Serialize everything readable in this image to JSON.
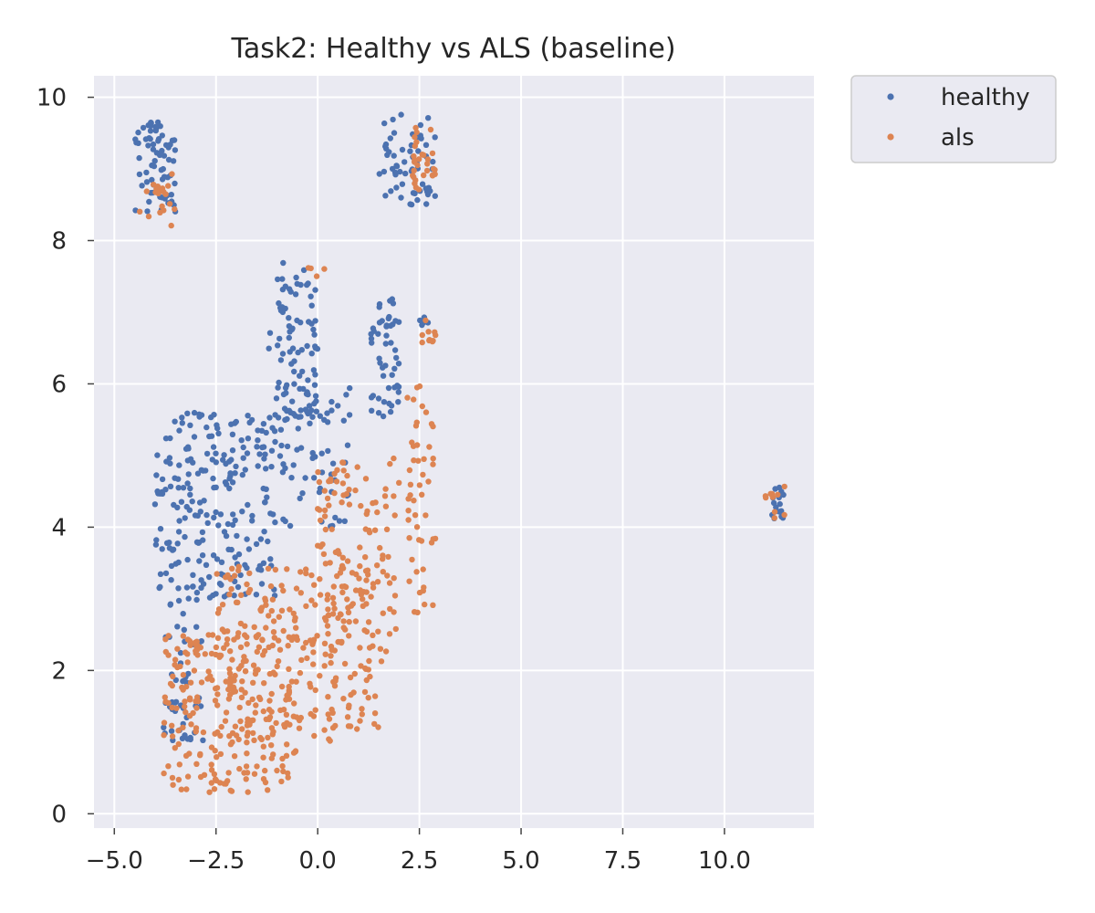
{
  "chart_data": {
    "type": "scatter",
    "title": "Task2: Healthy vs ALS (baseline)",
    "xlabel": "",
    "ylabel": "",
    "xlim": [
      -5.5,
      12.2
    ],
    "ylim": [
      -0.2,
      10.3
    ],
    "x_ticks": [
      -5.0,
      -2.5,
      0.0,
      2.5,
      5.0,
      7.5,
      10.0
    ],
    "x_tick_labels": [
      "−5.0",
      "−2.5",
      "0.0",
      "2.5",
      "5.0",
      "7.5",
      "10.0"
    ],
    "y_ticks": [
      0,
      2,
      4,
      6,
      8,
      10
    ],
    "y_tick_labels": [
      "0",
      "2",
      "4",
      "6",
      "8",
      "10"
    ],
    "grid": true,
    "legend_position": "outside-top-right",
    "series": [
      {
        "name": "healthy",
        "color": "#4c72b0",
        "clusters": [
          {
            "x": [
              -4.5,
              -3.5
            ],
            "y": [
              8.4,
              9.7
            ],
            "n": 70
          },
          {
            "x": [
              1.5,
              2.9
            ],
            "y": [
              8.5,
              9.8
            ],
            "n": 60
          },
          {
            "x": [
              -1.2,
              0.0
            ],
            "y": [
              5.5,
              7.7
            ],
            "n": 90
          },
          {
            "x": [
              1.3,
              2.0
            ],
            "y": [
              5.5,
              7.2
            ],
            "n": 50
          },
          {
            "x": [
              -4.0,
              -1.0
            ],
            "y": [
              3.0,
              5.6
            ],
            "n": 230
          },
          {
            "x": [
              -3.8,
              -2.8
            ],
            "y": [
              1.0,
              3.0
            ],
            "n": 50
          },
          {
            "x": [
              -1.0,
              0.8
            ],
            "y": [
              4.0,
              6.0
            ],
            "n": 60
          },
          {
            "x": [
              2.5,
              2.9
            ],
            "y": [
              6.8,
              6.95
            ],
            "n": 5
          },
          {
            "x": [
              11.1,
              11.5
            ],
            "y": [
              4.1,
              4.6
            ],
            "n": 15
          }
        ]
      },
      {
        "name": "als",
        "color": "#dd8452",
        "clusters": [
          {
            "x": [
              -4.4,
              -3.5
            ],
            "y": [
              8.2,
              9.0
            ],
            "n": 20
          },
          {
            "x": [
              2.3,
              2.9
            ],
            "y": [
              8.7,
              9.6
            ],
            "n": 30
          },
          {
            "x": [
              -3.8,
              -0.5
            ],
            "y": [
              0.3,
              2.5
            ],
            "n": 230
          },
          {
            "x": [
              -2.5,
              1.5
            ],
            "y": [
              1.0,
              3.5
            ],
            "n": 230
          },
          {
            "x": [
              0.0,
              2.0
            ],
            "y": [
              2.0,
              5.0
            ],
            "n": 120
          },
          {
            "x": [
              2.2,
              2.9
            ],
            "y": [
              2.8,
              6.0
            ],
            "n": 50
          },
          {
            "x": [
              2.5,
              3.0
            ],
            "y": [
              6.5,
              6.9
            ],
            "n": 10
          },
          {
            "x": [
              -0.3,
              0.2
            ],
            "y": [
              7.5,
              7.65
            ],
            "n": 4
          },
          {
            "x": [
              11.0,
              11.5
            ],
            "y": [
              4.1,
              4.6
            ],
            "n": 10
          }
        ]
      }
    ]
  }
}
